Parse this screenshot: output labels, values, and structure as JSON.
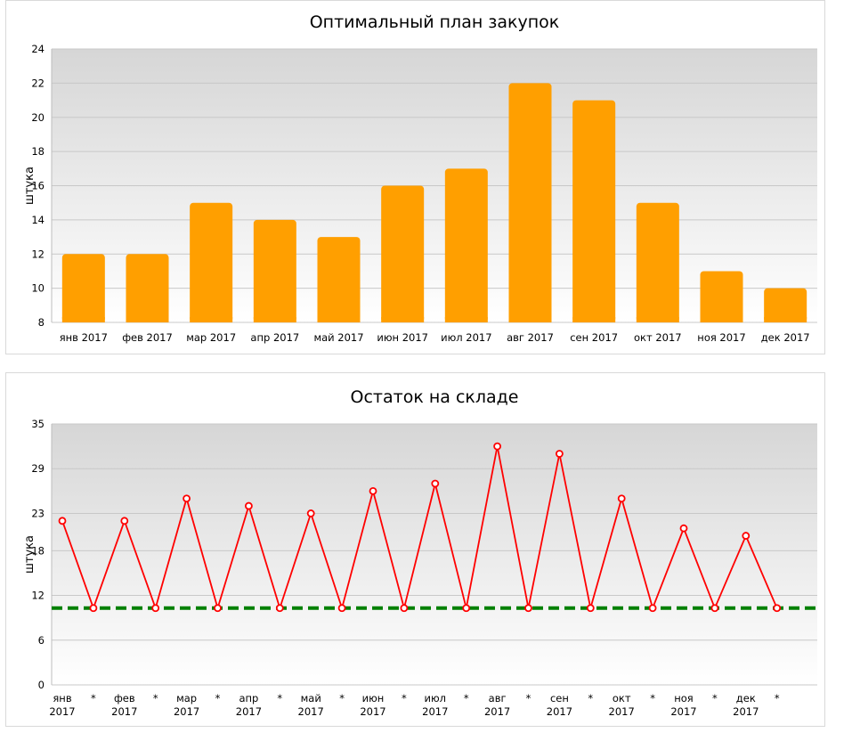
{
  "chart_data": [
    {
      "type": "bar",
      "title": "Оптимальный план закупок",
      "ylabel": "штука",
      "xlabel": "",
      "ylim": [
        8,
        24
      ],
      "yticks": [
        8,
        10,
        12,
        14,
        16,
        18,
        20,
        22,
        24
      ],
      "categories": [
        "янв 2017",
        "фев 2017",
        "мар 2017",
        "апр 2017",
        "май 2017",
        "июн 2017",
        "июл 2017",
        "авг 2017",
        "сен 2017",
        "окт 2017",
        "ноя 2017",
        "дек 2017"
      ],
      "values": [
        12,
        12,
        15,
        14,
        13,
        16,
        17,
        22,
        21,
        15,
        11,
        10
      ],
      "bar_color": "#ff9f00",
      "grid": true,
      "legend": "none"
    },
    {
      "type": "line",
      "title": "Остаток на складе",
      "ylabel": "штука",
      "xlabel": "",
      "ylim": [
        0,
        35
      ],
      "yticks": [
        0,
        6,
        12,
        18,
        23,
        29,
        35
      ],
      "categories": [
        "янв 2017",
        "*",
        "фев 2017",
        "*",
        "мар 2017",
        "*",
        "апр 2017",
        "*",
        "май 2017",
        "*",
        "июн 2017",
        "*",
        "июл 2017",
        "*",
        "авг 2017",
        "*",
        "сен 2017",
        "*",
        "окт 2017",
        "*",
        "ноя 2017",
        "*",
        "дек 2017",
        "*"
      ],
      "values": [
        22,
        10.3,
        22,
        10.3,
        25,
        10.3,
        24,
        10.3,
        23,
        10.3,
        26,
        10.3,
        27,
        10.3,
        32,
        10.3,
        31,
        10.3,
        25,
        10.3,
        21,
        10.3,
        20,
        10.3
      ],
      "line_color": "#ff0000",
      "reference_line": 10.3,
      "reference_color": "#008000",
      "grid": true,
      "legend": "none"
    }
  ]
}
